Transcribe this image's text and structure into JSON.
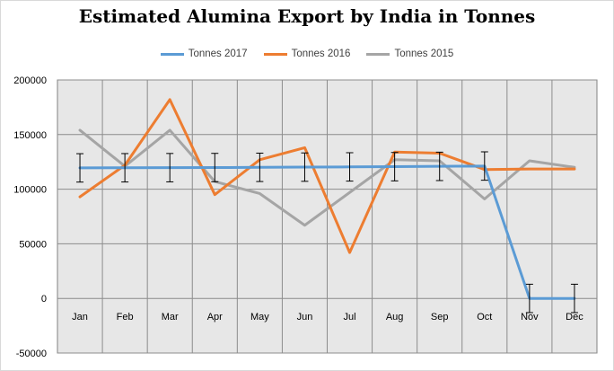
{
  "chart_data": {
    "type": "line",
    "title": "Estimated Alumina Export by India in Tonnes",
    "xlabel": "",
    "ylabel": "",
    "categories": [
      "Jan",
      "Feb",
      "Mar",
      "Apr",
      "May",
      "Jun",
      "Jul",
      "Aug",
      "Sep",
      "Oct",
      "Nov",
      "Dec"
    ],
    "ylim": [
      -50000,
      200000
    ],
    "yticks": [
      -50000,
      0,
      50000,
      100000,
      150000,
      200000
    ],
    "ytick_labels": [
      "-50000",
      "0",
      "50000",
      "100000",
      "150000",
      "200000"
    ],
    "grid": true,
    "legend_position": "top",
    "series": [
      {
        "name": "Tonnes 2017",
        "color": "#5b9bd5",
        "values": [
          119500,
          119600,
          119700,
          119800,
          120000,
          120200,
          120400,
          120600,
          120900,
          121200,
          0,
          0
        ],
        "error_bars": 13000
      },
      {
        "name": "Tonnes 2016",
        "color": "#ed7d31",
        "values": [
          93000,
          122000,
          182000,
          95000,
          127000,
          138000,
          42000,
          134000,
          133000,
          118000,
          118500,
          118500
        ]
      },
      {
        "name": "Tonnes 2015",
        "color": "#a5a5a5",
        "values": [
          154000,
          121000,
          154000,
          107000,
          96000,
          67000,
          97000,
          127000,
          126000,
          91000,
          126000,
          120000
        ]
      }
    ]
  }
}
